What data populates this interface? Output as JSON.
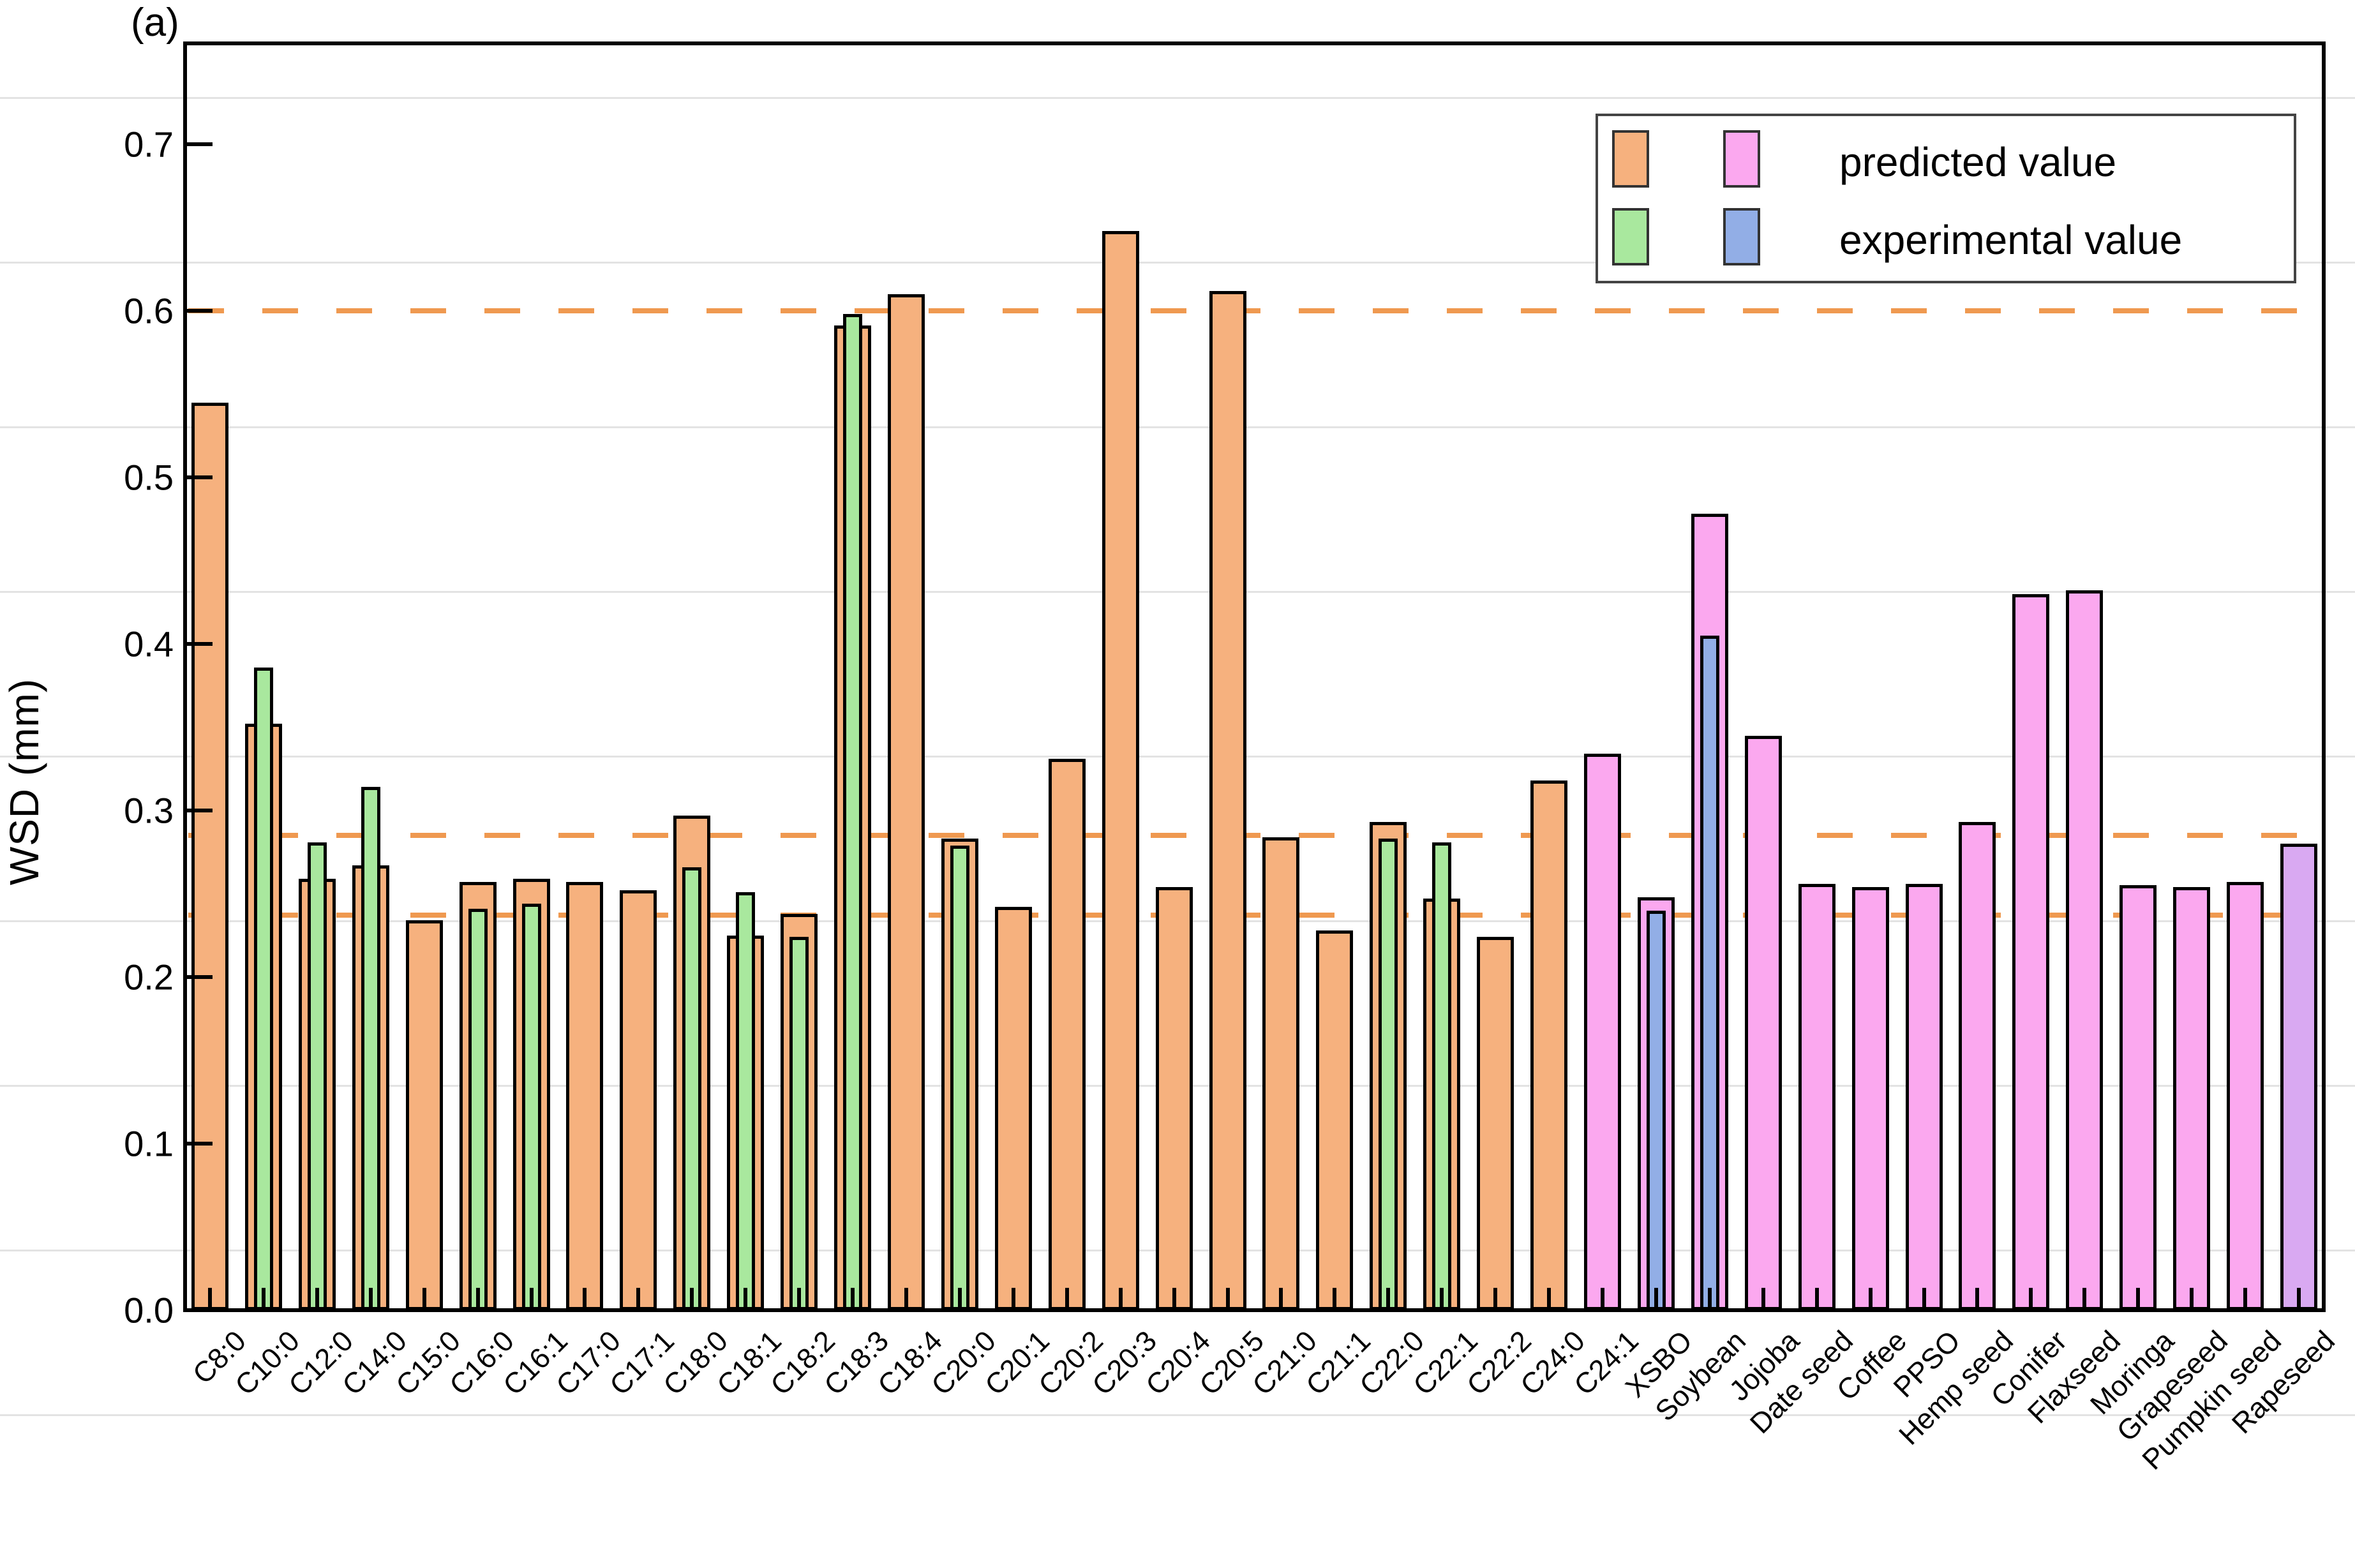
{
  "panel_label": "(a)",
  "legend": {
    "predicted_label": "predicted value",
    "experimental_label": "experimental value"
  },
  "colors": {
    "predicted_fatty_acid": "#f6b17e",
    "predicted_oil": "#fba8ef",
    "predicted_rapeseed": "#d9a9f2",
    "experimental_fatty_acid": "#a9e89e",
    "experimental_oil": "#92aee6",
    "dashed_reference": "#ef9950",
    "axis": "#000000",
    "background_rule": "#cccccc"
  },
  "chart_data": {
    "type": "bar",
    "title": "",
    "xlabel": "",
    "ylabel": "WSD (mm)",
    "ylim": [
      0.0,
      0.76
    ],
    "grid": "off",
    "legend_position": "upper right",
    "ytick_labels": [
      "0.0",
      "0.1",
      "0.2",
      "0.3",
      "0.4",
      "0.5",
      "0.6",
      "0.7"
    ],
    "ytick_values": [
      0.0,
      0.1,
      0.2,
      0.3,
      0.4,
      0.5,
      0.6,
      0.7
    ],
    "dashed_reference_lines": [
      0.6,
      0.285,
      0.237
    ],
    "series": [
      {
        "name": "predicted value"
      },
      {
        "name": "experimental value"
      }
    ],
    "categories": [
      "C8:0",
      "C10:0",
      "C12:0",
      "C14:0",
      "C15:0",
      "C16:0",
      "C16:1",
      "C17:0",
      "C17:1",
      "C18:0",
      "C18:1",
      "C18:2",
      "C18:3",
      "C18:4",
      "C20:0",
      "C20:1",
      "C20:2",
      "C20:3",
      "C20:4",
      "C20:5",
      "C21:0",
      "C21:1",
      "C22:0",
      "C22:1",
      "C22:2",
      "C24:0",
      "C24:1",
      "XSBO",
      "Soybean",
      "Jojoba",
      "Date seed",
      "Coffee",
      "PPSO",
      "Hemp seed",
      "Conifer",
      "Flaxseed",
      "Moringa",
      "Grapeseed",
      "Pumpkin seed",
      "Rapeseed"
    ],
    "predicted_values": [
      0.545,
      0.352,
      0.259,
      0.267,
      0.234,
      0.257,
      0.259,
      0.257,
      0.252,
      0.297,
      0.225,
      0.238,
      0.591,
      0.61,
      0.283,
      0.242,
      0.331,
      0.648,
      0.254,
      0.612,
      0.284,
      0.228,
      0.293,
      0.247,
      0.224,
      0.318,
      0.334,
      0.248,
      0.478,
      0.345,
      0.256,
      0.254,
      0.256,
      0.293,
      0.43,
      0.432,
      0.255,
      0.254,
      0.257,
      0.28
    ],
    "experimental_values": [
      null,
      0.386,
      0.281,
      0.314,
      null,
      0.241,
      0.244,
      null,
      null,
      0.266,
      0.251,
      0.224,
      0.598,
      null,
      0.279,
      null,
      null,
      null,
      null,
      null,
      null,
      null,
      0.283,
      0.281,
      null,
      null,
      null,
      0.24,
      0.405,
      null,
      null,
      null,
      null,
      null,
      null,
      null,
      null,
      null,
      null,
      null
    ],
    "predicted_color_key": [
      "orange",
      "orange",
      "orange",
      "orange",
      "orange",
      "orange",
      "orange",
      "orange",
      "orange",
      "orange",
      "orange",
      "orange",
      "orange",
      "orange",
      "orange",
      "orange",
      "orange",
      "orange",
      "orange",
      "orange",
      "orange",
      "orange",
      "orange",
      "orange",
      "orange",
      "orange",
      "pink",
      "pink",
      "pink",
      "pink",
      "pink",
      "pink",
      "pink",
      "pink",
      "pink",
      "pink",
      "pink",
      "pink",
      "pink",
      "violet"
    ],
    "experimental_color_key": [
      "green",
      "green",
      "green",
      "green",
      "green",
      "green",
      "green",
      "green",
      "green",
      "green",
      "green",
      "green",
      "green",
      "green",
      "green",
      "green",
      "green",
      "green",
      "green",
      "green",
      "green",
      "green",
      "green",
      "green",
      "green",
      "green",
      "blue",
      "blue",
      "blue",
      "blue",
      "blue",
      "blue",
      "blue",
      "blue",
      "blue",
      "blue",
      "blue",
      "blue",
      "blue",
      "blue"
    ]
  }
}
